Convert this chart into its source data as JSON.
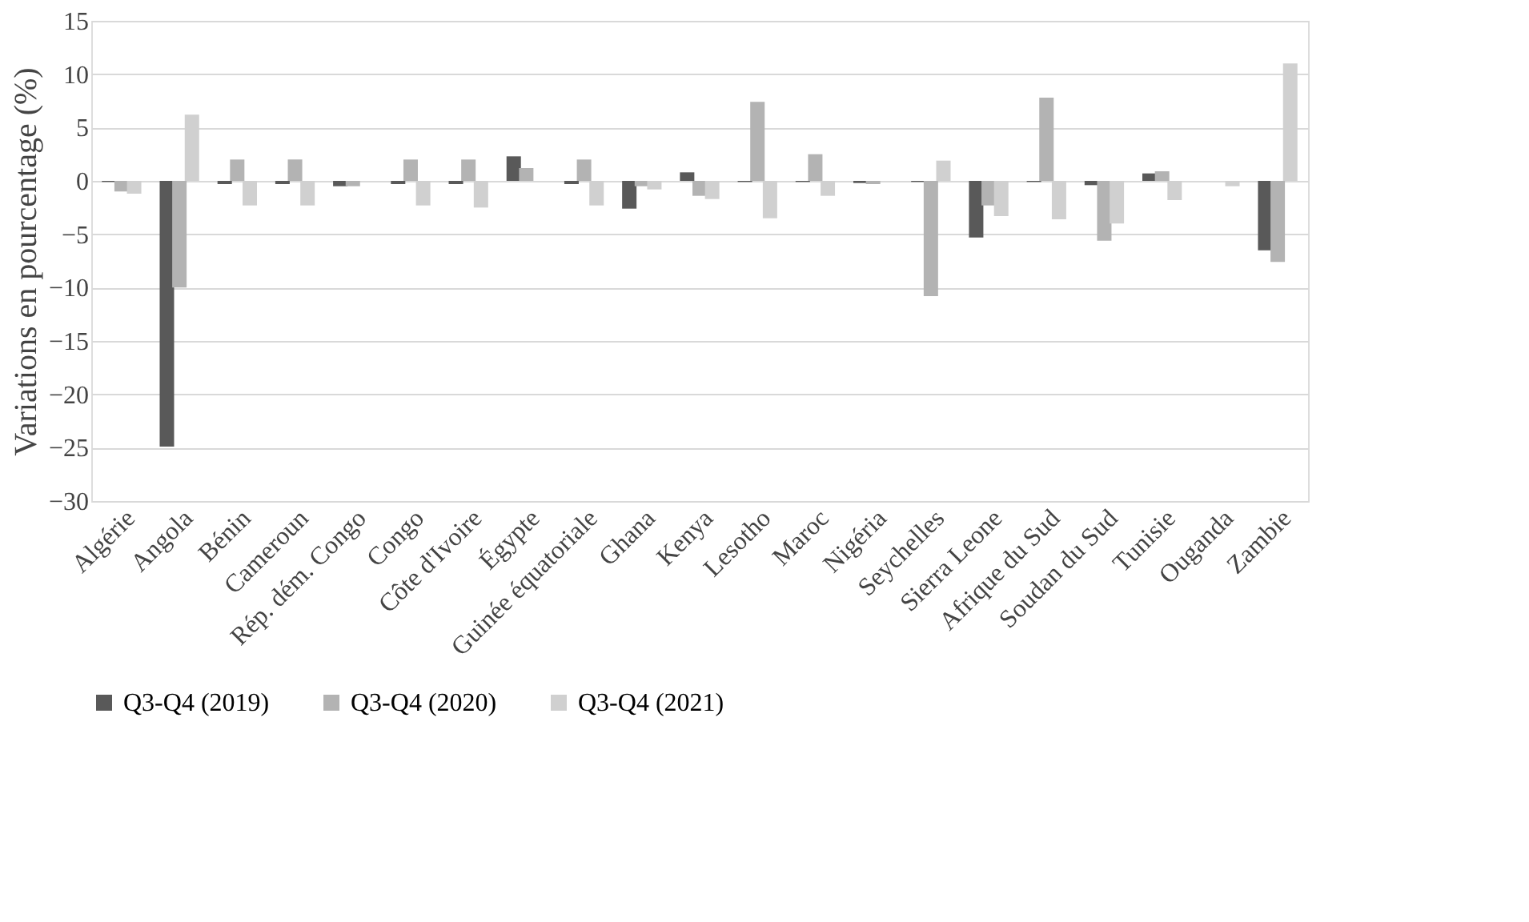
{
  "chart_data": {
    "type": "bar",
    "ylabel": "Variations en pourcentage (%)",
    "categories": [
      "Algérie",
      "Angola",
      "Bénin",
      "Cameroun",
      "Rép. dém. Congo",
      "Congo",
      "Côte d'Ivoire",
      "Égypte",
      "Guinée équatoriale",
      "Ghana",
      "Kenya",
      "Lesotho",
      "Maroc",
      "Nigéria",
      "Seychelles",
      "Sierra Leone",
      "Afrique du Sud",
      "Soudan du Sud",
      "Tunisie",
      "Ouganda",
      "Zambie"
    ],
    "series": [
      {
        "name": "Q3-Q4 (2019)",
        "color": "#595959",
        "values": [
          -0.1,
          -24.9,
          -0.3,
          -0.3,
          -0.5,
          -0.3,
          -0.3,
          2.3,
          -0.3,
          -2.6,
          0.8,
          -0.1,
          -0.1,
          -0.2,
          -0.1,
          -5.3,
          -0.1,
          -0.4,
          0.7,
          0,
          -6.5
        ]
      },
      {
        "name": "Q3-Q4 (2020)",
        "color": "#b3b3b3",
        "values": [
          -1.0,
          -10.0,
          2.0,
          2.0,
          -0.5,
          2.0,
          2.0,
          1.2,
          2.0,
          -0.5,
          -1.4,
          7.4,
          2.5,
          -0.3,
          -10.8,
          -2.3,
          7.8,
          -5.6,
          0.9,
          0,
          -7.6
        ]
      },
      {
        "name": "Q3-Q4 (2021)",
        "color": "#d0d0d0",
        "values": [
          -1.2,
          6.2,
          -2.3,
          -2.3,
          null,
          -2.3,
          -2.5,
          0,
          -2.3,
          -0.8,
          -1.7,
          -3.5,
          -1.4,
          null,
          1.9,
          -3.3,
          -3.6,
          -4.0,
          -1.8,
          -0.5,
          11.0
        ]
      }
    ],
    "ylim": [
      -30,
      15
    ],
    "yticks": [
      -30,
      -25,
      -20,
      -15,
      -10,
      -5,
      0,
      5,
      10,
      15
    ],
    "grid": "y",
    "legend": "bottom"
  }
}
